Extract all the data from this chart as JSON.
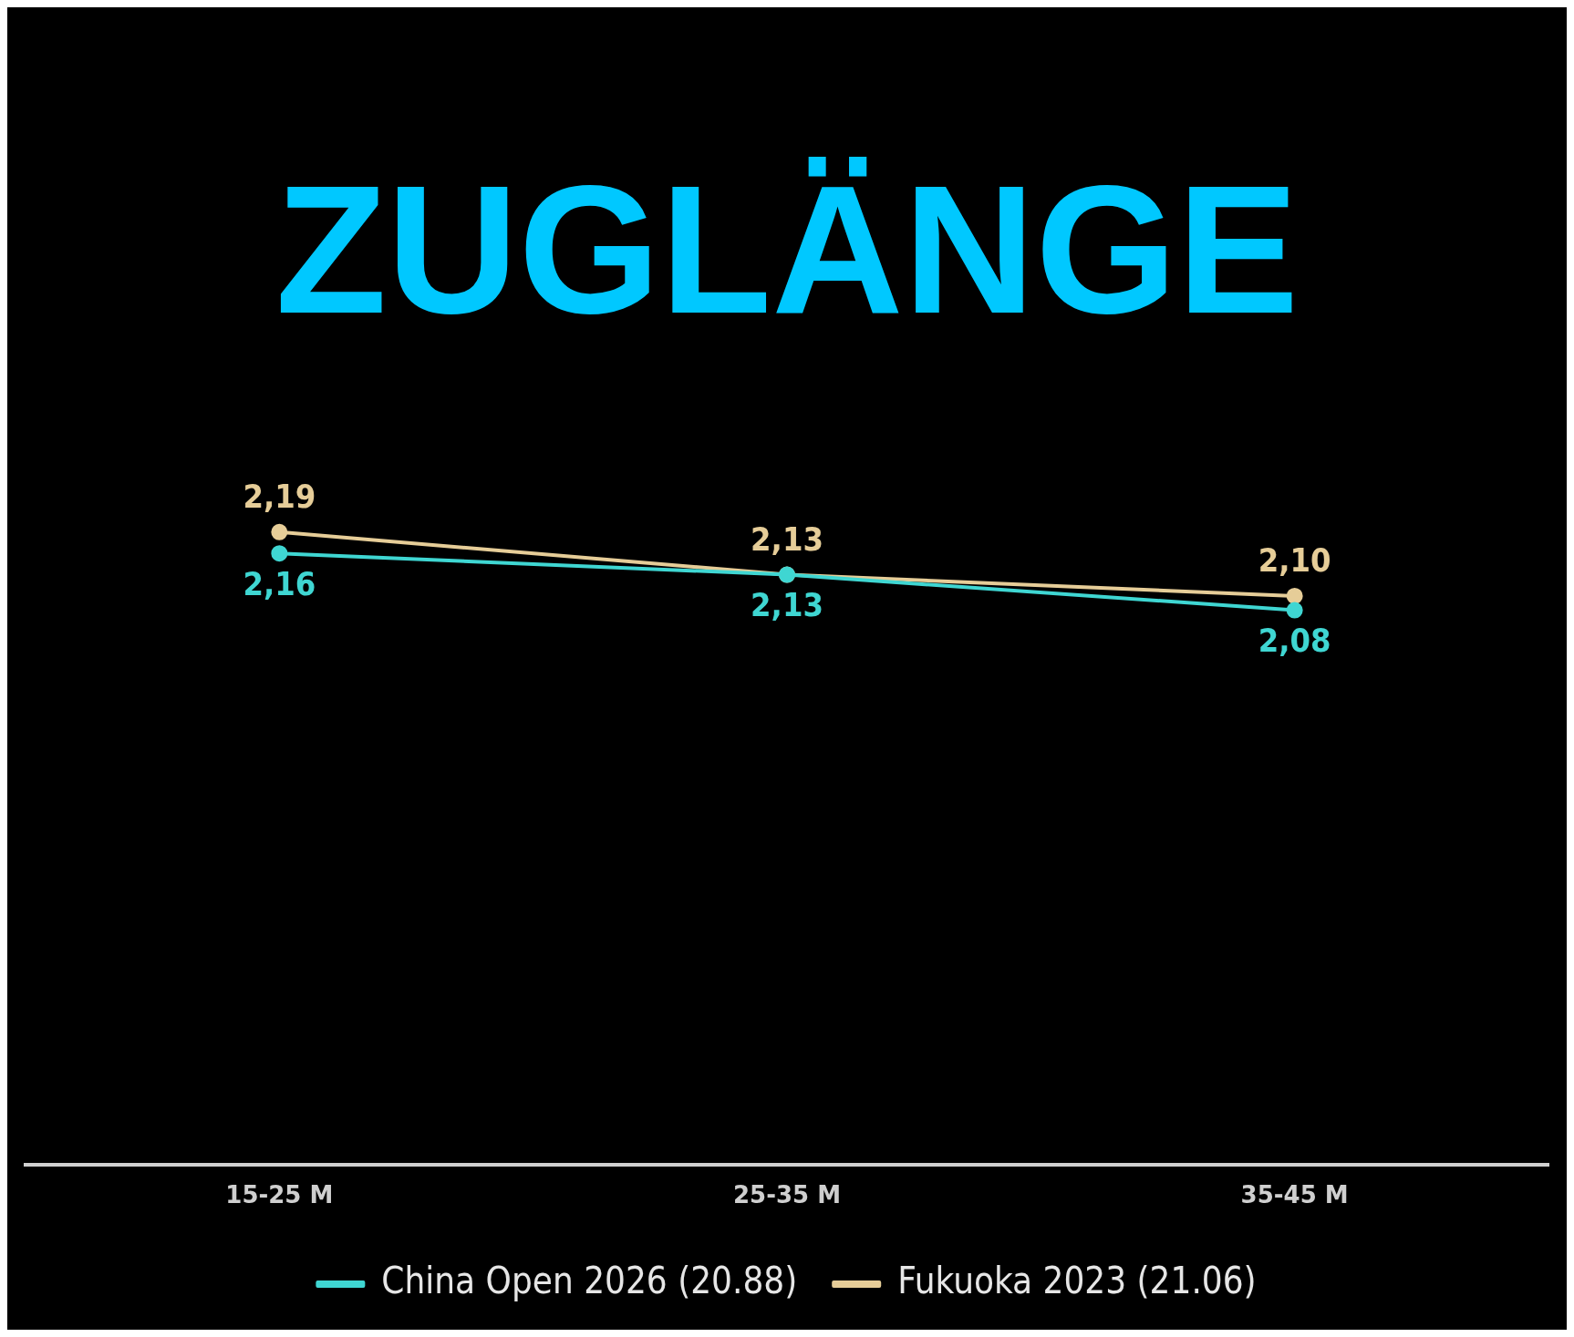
{
  "chart_data": {
    "type": "line",
    "title": "ZUGLÄNGE",
    "categories": [
      "15-25 M",
      "25-35 M",
      "35-45 M"
    ],
    "series": [
      {
        "name": "China Open 2026 (20.88)",
        "color": "#3fd6d2",
        "values": [
          2.16,
          2.13,
          2.08
        ],
        "value_labels": [
          "2,16",
          "2,13",
          "2,08"
        ]
      },
      {
        "name": "Fukuoka 2023 (21.06)",
        "color": "#e6cd98",
        "values": [
          2.19,
          2.13,
          2.1
        ],
        "value_labels": [
          "2,19",
          "2,13",
          "2,10"
        ]
      }
    ],
    "tick_labels": "x",
    "grid": false,
    "legend": "bottom",
    "marker": "circle",
    "line_style": "solid"
  }
}
